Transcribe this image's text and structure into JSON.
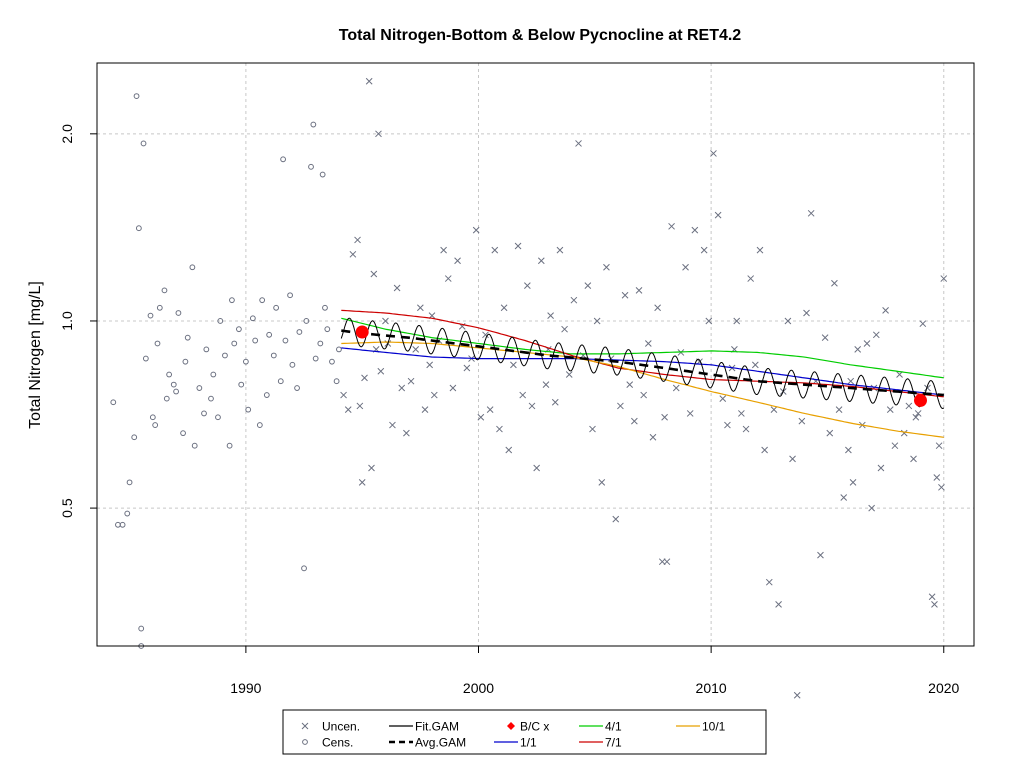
{
  "chart_data": {
    "type": "scatter",
    "title": "Total Nitrogen-Bottom & Below Pycnocline at RET4.2",
    "xlabel": "",
    "ylabel": "Total Nitrogen [mg/L]",
    "xlim": [
      1983.6,
      2021.3
    ],
    "ylim_log": [
      0.3,
      2.6
    ],
    "y_scale": "log",
    "x_ticks": [
      1990,
      2000,
      2010,
      2020
    ],
    "y_ticks": [
      0.5,
      1.0,
      2.0
    ],
    "x_tick_labels": [
      "1990",
      "2000",
      "2010",
      "2020"
    ],
    "y_tick_labels": [
      "0.5",
      "1.0",
      "2.0"
    ],
    "grid": true,
    "legend": {
      "position": "bottom",
      "items": [
        {
          "label": "Uncen.",
          "symbol": "x",
          "color": "#6b7080"
        },
        {
          "label": "Cens.",
          "symbol": "circle",
          "color": "#6b7080"
        },
        {
          "label": "Fit.GAM",
          "symbol": "line",
          "color": "#000000"
        },
        {
          "label": "Avg.GAM",
          "symbol": "dashed",
          "color": "#000000"
        },
        {
          "label": "B/C x",
          "symbol": "diamond",
          "color": "#ff0000"
        },
        {
          "label": "1/1",
          "symbol": "line",
          "color": "#0000cd"
        },
        {
          "label": "4/1",
          "symbol": "line",
          "color": "#00cd00"
        },
        {
          "label": "7/1",
          "symbol": "line",
          "color": "#cd0000"
        },
        {
          "label": "10/1",
          "symbol": "line",
          "color": "#e8a000"
        }
      ]
    },
    "series": [
      {
        "name": "Avg.GAM",
        "color": "#000000",
        "style": "dashed",
        "x": [
          1994.1,
          1995,
          1997,
          1999,
          2001,
          2003,
          2004.5,
          2006,
          2008,
          2010,
          2012,
          2014,
          2016,
          2018,
          2020
        ],
        "y": [
          0.965,
          0.955,
          0.94,
          0.92,
          0.9,
          0.88,
          0.87,
          0.86,
          0.84,
          0.82,
          0.8,
          0.79,
          0.78,
          0.77,
          0.76
        ]
      },
      {
        "name": "1/1",
        "color": "#0000cd",
        "x": [
          1994.1,
          1996,
          1998,
          2000,
          2002,
          2004,
          2006,
          2008,
          2010,
          2012,
          2014,
          2016,
          2018,
          2020
        ],
        "y": [
          0.905,
          0.89,
          0.875,
          0.87,
          0.87,
          0.87,
          0.865,
          0.86,
          0.85,
          0.83,
          0.81,
          0.79,
          0.775,
          0.76
        ]
      },
      {
        "name": "4/1",
        "color": "#00cd00",
        "x": [
          1994.1,
          1996,
          1998,
          2000,
          2002,
          2004,
          2006,
          2008,
          2010,
          2012,
          2014,
          2016,
          2018,
          2020
        ],
        "y": [
          1.01,
          0.97,
          0.94,
          0.92,
          0.9,
          0.885,
          0.885,
          0.89,
          0.895,
          0.89,
          0.875,
          0.85,
          0.83,
          0.81
        ]
      },
      {
        "name": "7/1",
        "color": "#cd0000",
        "x": [
          1994.1,
          1996,
          1998,
          2000,
          2002,
          2004,
          2006,
          2008,
          2010,
          2012,
          2014,
          2016,
          2018,
          2020
        ],
        "y": [
          1.04,
          1.03,
          1.01,
          0.975,
          0.93,
          0.88,
          0.84,
          0.82,
          0.805,
          0.8,
          0.795,
          0.785,
          0.77,
          0.755
        ]
      },
      {
        "name": "10/1",
        "color": "#e8a000",
        "x": [
          1994.1,
          1996,
          1998,
          2000,
          2002,
          2004,
          2006,
          2008,
          2010,
          2012,
          2014,
          2016,
          2018,
          2020
        ],
        "y": [
          0.92,
          0.925,
          0.92,
          0.905,
          0.89,
          0.875,
          0.845,
          0.805,
          0.77,
          0.74,
          0.71,
          0.685,
          0.665,
          0.65
        ]
      }
    ],
    "fit_gam": {
      "name": "Fit.GAM",
      "color": "#000000",
      "x_start": 1994.1,
      "x_end": 2020.0,
      "amplitude_log": 0.05
    },
    "bc_points": [
      {
        "x": 1995.0,
        "y": 0.96
      },
      {
        "x": 2019.0,
        "y": 0.745
      }
    ],
    "uncensored": [
      [
        1994.2,
        0.76
      ],
      [
        1994.4,
        0.72
      ],
      [
        1994.6,
        1.28
      ],
      [
        1994.8,
        1.35
      ],
      [
        1995.0,
        0.55
      ],
      [
        1995.1,
        0.81
      ],
      [
        1995.3,
        2.43
      ],
      [
        1995.4,
        0.58
      ],
      [
        1995.5,
        1.19
      ],
      [
        1995.7,
        2.0
      ],
      [
        1995.8,
        0.83
      ],
      [
        1996.1,
        0.92
      ],
      [
        1996.3,
        0.68
      ],
      [
        1996.5,
        1.13
      ],
      [
        1996.7,
        0.78
      ],
      [
        1996.9,
        0.66
      ],
      [
        1997.1,
        0.8
      ],
      [
        1997.3,
        0.9
      ],
      [
        1997.5,
        1.05
      ],
      [
        1997.7,
        0.72
      ],
      [
        1997.9,
        0.85
      ],
      [
        1998.1,
        0.76
      ],
      [
        1998.3,
        0.93
      ],
      [
        1998.5,
        1.3
      ],
      [
        1998.7,
        1.17
      ],
      [
        1998.9,
        0.78
      ],
      [
        1999.1,
        1.25
      ],
      [
        1999.3,
        0.98
      ],
      [
        1999.5,
        0.84
      ],
      [
        1999.7,
        0.87
      ],
      [
        1999.9,
        1.4
      ],
      [
        2000.1,
        0.7
      ],
      [
        2000.3,
        0.95
      ],
      [
        2000.5,
        0.72
      ],
      [
        2000.7,
        1.3
      ],
      [
        2000.9,
        0.67
      ],
      [
        2001.1,
        1.05
      ],
      [
        2001.3,
        0.62
      ],
      [
        2001.5,
        0.85
      ],
      [
        2001.7,
        1.32
      ],
      [
        2001.9,
        0.76
      ],
      [
        2002.1,
        1.14
      ],
      [
        2002.3,
        0.73
      ],
      [
        2002.5,
        0.58
      ],
      [
        2002.7,
        1.25
      ],
      [
        2002.9,
        0.79
      ],
      [
        2003.1,
        1.02
      ],
      [
        2003.3,
        0.74
      ],
      [
        2003.5,
        1.3
      ],
      [
        2003.7,
        0.97
      ],
      [
        2003.9,
        0.82
      ],
      [
        2004.1,
        1.08
      ],
      [
        2004.3,
        1.93
      ],
      [
        2004.5,
        0.88
      ],
      [
        2004.7,
        1.14
      ],
      [
        2004.9,
        0.67
      ],
      [
        2005.1,
        1.0
      ],
      [
        2005.3,
        0.55
      ],
      [
        2005.5,
        1.22
      ],
      [
        2005.7,
        0.87
      ],
      [
        2005.9,
        0.48
      ],
      [
        2006.1,
        0.73
      ],
      [
        2006.3,
        1.1
      ],
      [
        2006.5,
        0.79
      ],
      [
        2006.7,
        0.69
      ],
      [
        2006.9,
        1.12
      ],
      [
        2007.1,
        0.76
      ],
      [
        2007.3,
        0.92
      ],
      [
        2007.5,
        0.65
      ],
      [
        2007.7,
        1.05
      ],
      [
        2007.9,
        0.41
      ],
      [
        2008.1,
        0.41
      ],
      [
        2008.3,
        1.42
      ],
      [
        2008.5,
        0.78
      ],
      [
        2008.7,
        0.89
      ],
      [
        2008.9,
        1.22
      ],
      [
        2009.1,
        0.71
      ],
      [
        2009.3,
        1.4
      ],
      [
        2009.5,
        0.86
      ],
      [
        2009.7,
        1.3
      ],
      [
        2009.9,
        1.0
      ],
      [
        2010.1,
        1.86
      ],
      [
        2010.3,
        1.48
      ],
      [
        2010.5,
        0.75
      ],
      [
        2010.7,
        0.68
      ],
      [
        2010.9,
        0.84
      ],
      [
        2011.1,
        1.0
      ],
      [
        2011.3,
        0.71
      ],
      [
        2011.5,
        0.67
      ],
      [
        2011.7,
        1.17
      ],
      [
        2011.9,
        0.85
      ],
      [
        2012.1,
        1.3
      ],
      [
        2012.3,
        0.62
      ],
      [
        2012.5,
        0.38
      ],
      [
        2012.7,
        0.72
      ],
      [
        2012.9,
        0.35
      ],
      [
        2013.1,
        0.77
      ],
      [
        2013.3,
        1.0
      ],
      [
        2013.5,
        0.6
      ],
      [
        2013.7,
        0.25
      ],
      [
        2013.9,
        0.69
      ],
      [
        2014.1,
        1.03
      ],
      [
        2014.3,
        1.49
      ],
      [
        2014.5,
        0.8
      ],
      [
        2014.7,
        0.42
      ],
      [
        2014.9,
        0.94
      ],
      [
        2015.1,
        0.66
      ],
      [
        2015.3,
        1.15
      ],
      [
        2015.5,
        0.72
      ],
      [
        2015.7,
        0.52
      ],
      [
        2015.9,
        0.62
      ],
      [
        2016.1,
        0.55
      ],
      [
        2016.3,
        0.9
      ],
      [
        2016.5,
        0.68
      ],
      [
        2016.7,
        0.92
      ],
      [
        2016.9,
        0.5
      ],
      [
        2017.1,
        0.95
      ],
      [
        2017.3,
        0.58
      ],
      [
        2017.5,
        1.04
      ],
      [
        2017.7,
        0.72
      ],
      [
        2017.9,
        0.63
      ],
      [
        2018.1,
        0.82
      ],
      [
        2018.3,
        0.66
      ],
      [
        2018.5,
        0.73
      ],
      [
        2018.7,
        0.6
      ],
      [
        2018.9,
        0.71
      ],
      [
        2019.1,
        0.99
      ],
      [
        2019.3,
        0.78
      ],
      [
        2019.5,
        0.36
      ],
      [
        2019.6,
        0.35
      ],
      [
        2019.7,
        0.56
      ],
      [
        2019.8,
        0.63
      ],
      [
        2019.9,
        0.54
      ],
      [
        2020.0,
        1.17
      ],
      [
        1994.9,
        0.73
      ],
      [
        1995.6,
        0.9
      ],
      [
        1996.0,
        1.0
      ],
      [
        1998.0,
        1.02
      ],
      [
        2003.0,
        0.9
      ],
      [
        2008.0,
        0.7
      ],
      [
        2011.0,
        0.9
      ],
      [
        2016.0,
        0.8
      ],
      [
        2017.0,
        0.78
      ],
      [
        2018.8,
        0.7
      ]
    ],
    "censored": [
      [
        1984.3,
        0.74
      ],
      [
        1984.5,
        0.47
      ],
      [
        1984.7,
        0.47
      ],
      [
        1984.9,
        0.49
      ],
      [
        1985.0,
        0.55
      ],
      [
        1985.2,
        0.65
      ],
      [
        1985.3,
        2.3
      ],
      [
        1985.4,
        1.41
      ],
      [
        1985.5,
        0.3
      ],
      [
        1985.5,
        0.32
      ],
      [
        1985.6,
        1.93
      ],
      [
        1985.7,
        0.87
      ],
      [
        1985.9,
        1.02
      ],
      [
        1986.0,
        0.7
      ],
      [
        1986.1,
        0.68
      ],
      [
        1986.2,
        0.92
      ],
      [
        1986.3,
        1.05
      ],
      [
        1986.5,
        1.12
      ],
      [
        1986.6,
        0.75
      ],
      [
        1986.7,
        0.82
      ],
      [
        1986.9,
        0.79
      ],
      [
        1987.0,
        0.77
      ],
      [
        1987.1,
        1.03
      ],
      [
        1987.3,
        0.66
      ],
      [
        1987.4,
        0.86
      ],
      [
        1987.5,
        0.94
      ],
      [
        1987.7,
        1.22
      ],
      [
        1987.8,
        0.63
      ],
      [
        1988.0,
        0.78
      ],
      [
        1988.2,
        0.71
      ],
      [
        1988.3,
        0.9
      ],
      [
        1988.5,
        0.75
      ],
      [
        1988.6,
        0.82
      ],
      [
        1988.8,
        0.7
      ],
      [
        1988.9,
        1.0
      ],
      [
        1989.1,
        0.88
      ],
      [
        1989.3,
        0.63
      ],
      [
        1989.4,
        1.08
      ],
      [
        1989.5,
        0.92
      ],
      [
        1989.7,
        0.97
      ],
      [
        1989.8,
        0.79
      ],
      [
        1990.0,
        0.86
      ],
      [
        1990.1,
        0.72
      ],
      [
        1990.3,
        1.01
      ],
      [
        1990.4,
        0.93
      ],
      [
        1990.6,
        0.68
      ],
      [
        1990.7,
        1.08
      ],
      [
        1990.9,
        0.76
      ],
      [
        1991.0,
        0.95
      ],
      [
        1991.2,
        0.88
      ],
      [
        1991.3,
        1.05
      ],
      [
        1991.5,
        0.8
      ],
      [
        1991.6,
        1.82
      ],
      [
        1991.7,
        0.93
      ],
      [
        1991.9,
        1.1
      ],
      [
        1992.0,
        0.85
      ],
      [
        1992.2,
        0.78
      ],
      [
        1992.3,
        0.96
      ],
      [
        1992.5,
        0.4
      ],
      [
        1992.6,
        1.0
      ],
      [
        1992.8,
        1.77
      ],
      [
        1992.9,
        2.07
      ],
      [
        1993.0,
        0.87
      ],
      [
        1993.2,
        0.92
      ],
      [
        1993.3,
        1.72
      ],
      [
        1993.4,
        1.05
      ],
      [
        1993.5,
        0.97
      ],
      [
        1993.7,
        0.86
      ],
      [
        1993.9,
        0.8
      ],
      [
        1994.0,
        0.9
      ]
    ]
  }
}
